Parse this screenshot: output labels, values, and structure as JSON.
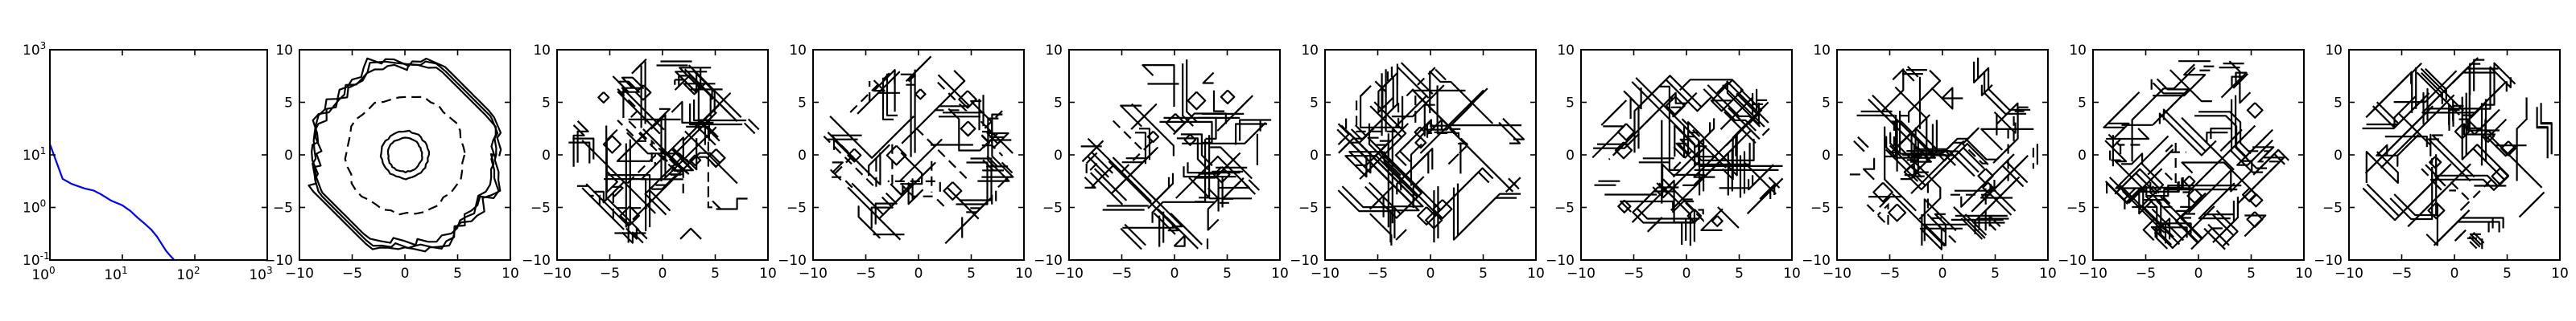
{
  "chart_data": [
    {
      "type": "line",
      "scale": "log-log",
      "xlim": [
        1,
        1000
      ],
      "ylim": [
        0.1,
        1000
      ],
      "x_ticks": [
        {
          "v": 1,
          "label": "10",
          "exp": "0"
        },
        {
          "v": 10,
          "label": "10",
          "exp": "1"
        },
        {
          "v": 100,
          "label": "10",
          "exp": "2"
        },
        {
          "v": 1000,
          "label": "10",
          "exp": "3"
        }
      ],
      "y_ticks": [
        {
          "v": 0.1,
          "label": "10",
          "exp": "-1"
        },
        {
          "v": 1,
          "label": "10",
          "exp": "0"
        },
        {
          "v": 10,
          "label": "10",
          "exp": "1"
        },
        {
          "v": 1000,
          "label": "10",
          "exp": "3"
        }
      ],
      "series": [
        {
          "color": "#0000ff",
          "x": [
            1,
            1.5,
            2,
            3,
            4,
            5,
            7,
            10,
            13,
            16,
            20,
            25,
            30,
            35,
            40,
            46,
            52
          ],
          "y": [
            16,
            3.5,
            2.8,
            2.3,
            2.1,
            1.8,
            1.35,
            1.1,
            0.85,
            0.65,
            0.5,
            0.38,
            0.28,
            0.2,
            0.15,
            0.12,
            0.1
          ]
        }
      ],
      "grid": false
    },
    {
      "type": "contour",
      "xlim": [
        -10,
        10
      ],
      "ylim": [
        -10,
        10
      ],
      "levels": "solid and dashed",
      "pattern": "initial ring"
    },
    {
      "type": "contour",
      "xlim": [
        -10,
        10
      ],
      "ylim": [
        -10,
        10
      ],
      "pattern": "noisy octagon"
    },
    {
      "type": "contour",
      "xlim": [
        -10,
        10
      ],
      "ylim": [
        -10,
        10
      ],
      "pattern": "noisy octagon"
    },
    {
      "type": "contour",
      "xlim": [
        -10,
        10
      ],
      "ylim": [
        -10,
        10
      ],
      "pattern": "noisy octagon"
    },
    {
      "type": "contour",
      "xlim": [
        -10,
        10
      ],
      "ylim": [
        -10,
        10
      ],
      "pattern": "noisy octagon"
    },
    {
      "type": "contour",
      "xlim": [
        -10,
        10
      ],
      "ylim": [
        -10,
        10
      ],
      "pattern": "noisy octagon"
    },
    {
      "type": "contour",
      "xlim": [
        -10,
        10
      ],
      "ylim": [
        -10,
        10
      ],
      "pattern": "noisy octagon"
    },
    {
      "type": "contour",
      "xlim": [
        -10,
        10
      ],
      "ylim": [
        -10,
        10
      ],
      "pattern": "noisy octagon"
    },
    {
      "type": "contour",
      "xlim": [
        -10,
        10
      ],
      "ylim": [
        -10,
        10
      ],
      "pattern": "noisy octagon"
    }
  ],
  "contour_ticks": [
    -10,
    -5,
    0,
    5,
    10
  ]
}
